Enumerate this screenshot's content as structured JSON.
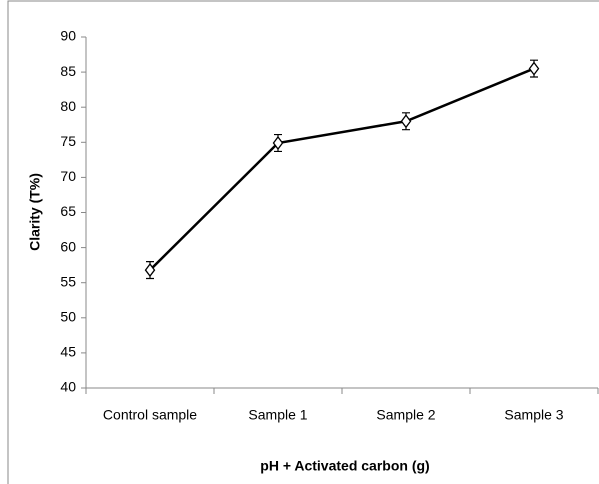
{
  "chart_data": {
    "type": "line",
    "categories": [
      "Control sample",
      "Sample 1",
      "Sample 2",
      "Sample 3"
    ],
    "series": [
      {
        "values": [
          56.8,
          74.9,
          78.0,
          85.5
        ],
        "errors": [
          1.2,
          1.2,
          1.2,
          1.2
        ],
        "color": "#000000"
      }
    ],
    "ylim": [
      40,
      90
    ],
    "yticks": [
      40,
      45,
      50,
      55,
      60,
      65,
      70,
      75,
      80,
      85,
      90
    ],
    "ylabel": "Clarity (T%)",
    "xlabel": "pH + Activated carbon (g)",
    "grid": false
  }
}
